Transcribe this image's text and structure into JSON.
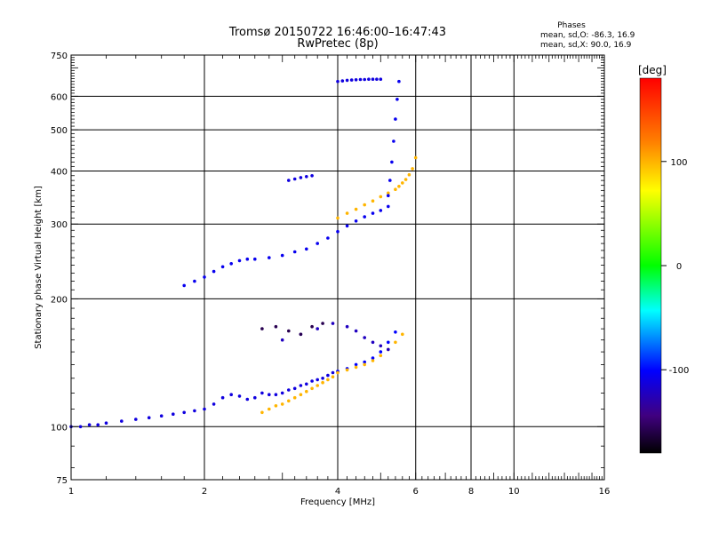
{
  "chart_data": {
    "type": "scatter",
    "title": "Tromsø 20150722 16:46:00–16:47:43",
    "subtitle": "RwPretec (8p)",
    "xlabel": "Frequency [MHz]",
    "ylabel": "Stationary phase Virtual Height [km]",
    "x_scale": "log",
    "y_scale": "log",
    "xlim": [
      1,
      16
    ],
    "ylim": [
      75,
      750
    ],
    "x_ticks": [
      1,
      2,
      4,
      6,
      8,
      10,
      16
    ],
    "y_ticks": [
      75,
      100,
      200,
      300,
      400,
      500,
      600,
      750
    ],
    "grid": true,
    "stats": {
      "heading": "Phases",
      "line_o": "mean, sd,O: -86.3, 16.9",
      "line_x": "mean, sd,X:  90.0, 16.9"
    },
    "colorbar": {
      "label": "[deg]",
      "range": [
        -180,
        180
      ],
      "ticks": [
        100,
        0,
        -100
      ],
      "placement": "right"
    },
    "traces": [
      {
        "x": [
          1.0,
          1.05,
          1.1,
          1.15,
          1.2,
          1.3,
          1.4,
          1.5,
          1.6,
          1.7,
          1.8,
          1.9,
          2.0,
          2.1,
          2.2,
          2.3,
          2.4,
          2.5,
          2.6,
          2.7,
          2.8,
          2.9,
          3.0,
          3.1,
          3.2,
          3.3,
          3.4,
          3.5,
          3.6,
          3.7,
          3.8,
          3.9,
          4.0
        ],
        "y": [
          100,
          100,
          101,
          101,
          102,
          103,
          104,
          105,
          106,
          107,
          108,
          109,
          110,
          113,
          117,
          119,
          118,
          116,
          117,
          120,
          119,
          119,
          120,
          122,
          123,
          125,
          126,
          128,
          129,
          130,
          132,
          134,
          135
        ],
        "phase": -110
      },
      {
        "x": [
          4.0,
          4.2,
          4.4,
          4.6,
          4.8,
          5.0,
          5.2,
          5.4
        ],
        "y": [
          135,
          137,
          140,
          142,
          145,
          150,
          158,
          167
        ],
        "phase": -100
      },
      {
        "x": [
          2.7,
          2.8,
          2.9,
          3.0,
          3.1,
          3.2,
          3.3,
          3.4,
          3.5,
          3.6,
          3.7,
          3.8,
          3.9,
          4.0,
          4.2,
          4.4,
          4.6,
          4.8,
          5.0,
          5.2,
          5.4,
          5.6
        ],
        "y": [
          108,
          110,
          112,
          113,
          115,
          117,
          119,
          121,
          123,
          125,
          127,
          129,
          131,
          134,
          136,
          138,
          140,
          143,
          147,
          152,
          158,
          165
        ],
        "phase": 100
      },
      {
        "x": [
          1.8,
          1.9,
          2.0,
          2.1,
          2.2,
          2.3,
          2.4,
          2.5,
          2.6,
          2.8,
          3.0,
          3.2,
          3.4,
          3.6,
          3.8,
          4.0,
          4.2,
          4.4,
          4.6,
          4.8,
          5.0,
          5.2
        ],
        "y": [
          215,
          220,
          225,
          232,
          238,
          242,
          246,
          248,
          248,
          250,
          253,
          258,
          262,
          270,
          278,
          288,
          297,
          305,
          312,
          318,
          323,
          330
        ],
        "phase": -105
      },
      {
        "x": [
          4.0,
          4.2,
          4.4,
          4.6,
          4.8,
          5.0,
          5.2,
          5.4,
          5.5,
          5.6,
          5.7,
          5.8,
          5.9,
          6.0
        ],
        "y": [
          310,
          318,
          325,
          333,
          340,
          348,
          355,
          362,
          368,
          375,
          382,
          392,
          405,
          430
        ],
        "phase": 100
      },
      {
        "x": [
          5.2,
          5.25,
          5.3,
          5.35,
          5.4,
          5.45,
          5.5
        ],
        "y": [
          350,
          380,
          420,
          470,
          530,
          590,
          650
        ],
        "phase": -105
      },
      {
        "x": [
          3.0,
          3.3,
          3.6,
          3.9,
          4.2,
          4.4,
          4.6,
          4.8,
          5.0,
          5.2
        ],
        "y": [
          160,
          165,
          170,
          175,
          172,
          168,
          162,
          158,
          155,
          152
        ],
        "phase": -120
      },
      {
        "x": [
          2.7,
          2.9,
          3.1,
          3.3,
          3.5,
          3.7
        ],
        "y": [
          170,
          172,
          168,
          165,
          172,
          175
        ],
        "phase": -155
      },
      {
        "x": [
          4.0,
          4.1,
          4.2,
          4.3,
          4.4,
          4.5,
          4.6,
          4.7,
          4.8,
          4.9,
          5.0
        ],
        "y": [
          650,
          652,
          654,
          655,
          656,
          657,
          657,
          658,
          658,
          658,
          658
        ],
        "phase": -110
      },
      {
        "x": [
          3.1,
          3.2,
          3.3,
          3.4,
          3.5
        ],
        "y": [
          380,
          383,
          386,
          388,
          390
        ],
        "phase": -110
      }
    ]
  }
}
